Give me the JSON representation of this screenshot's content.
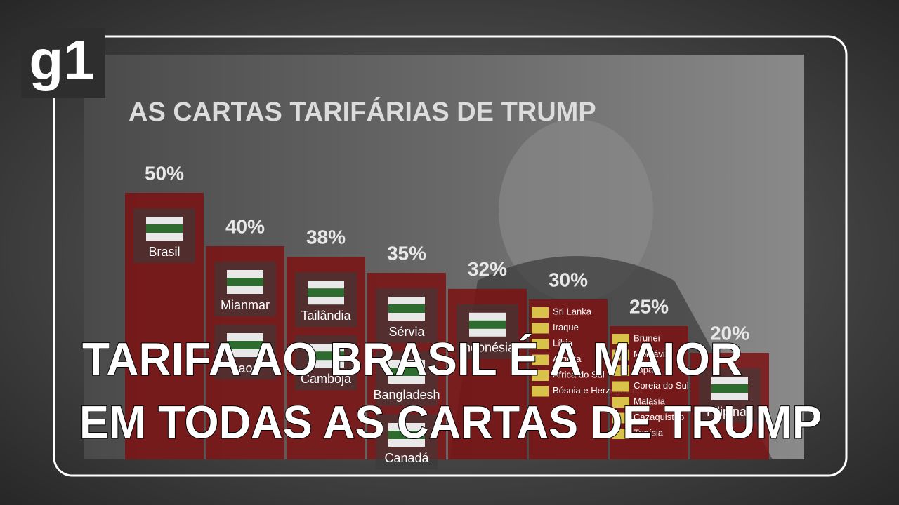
{
  "logo": "g1",
  "headline": [
    "TARIFA AO BRASIL É A MAIOR",
    "EM TODAS AS CARTAS DE TRUMP"
  ],
  "chart_data": {
    "type": "bar",
    "title": "AS CARTAS TARIFÁRIAS DE TRUMP",
    "values": [
      50,
      40,
      38,
      35,
      32,
      30,
      25,
      20
    ],
    "value_labels": [
      "50%",
      "40%",
      "38%",
      "35%",
      "32%",
      "30%",
      "25%",
      "20%"
    ],
    "countries": [
      [
        "Brasil"
      ],
      [
        "Mianmar",
        "Laos"
      ],
      [
        "Tailândia",
        "Camboja"
      ],
      [
        "Sérvia",
        "Bangladesh",
        "Canadá"
      ],
      [
        "Indonésia"
      ],
      [
        "Sri Lanka",
        "Iraque",
        "Líbia",
        "Argélia",
        "África do Sul",
        "Bósnia e Herzegovina"
      ],
      [
        "Brunei",
        "Moldávia",
        "Japão",
        "Coreia do Sul",
        "Malásia",
        "Cazaquistão",
        "Tunísia"
      ],
      [
        "Filipinas"
      ]
    ],
    "color": "#7d1212"
  }
}
